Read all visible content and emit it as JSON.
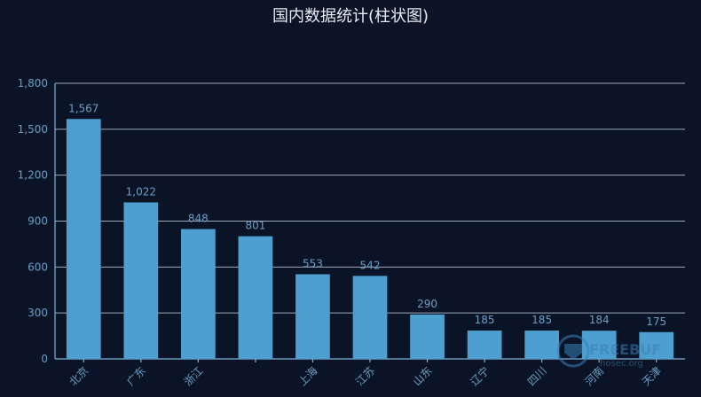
{
  "chart_data": {
    "type": "bar",
    "title": "国内数据统计(柱状图)",
    "categories": [
      "北京",
      "广东",
      "浙江",
      "",
      "上海",
      "江苏",
      "山东",
      "辽宁",
      "四川",
      "河南",
      "天津"
    ],
    "values": [
      1567,
      1022,
      848,
      801,
      553,
      542,
      290,
      185,
      185,
      184,
      175
    ],
    "value_labels": [
      "1,567",
      "1,022",
      "848",
      "801",
      "553",
      "542",
      "290",
      "185",
      "185",
      "184",
      "175"
    ],
    "ylim": [
      0,
      1800
    ],
    "yticks": [
      0,
      300,
      600,
      900,
      1200,
      1500,
      1800
    ],
    "ytick_labels": [
      "0",
      "300",
      "600",
      "900",
      "1,200",
      "1,500",
      "1,800"
    ],
    "grid": true,
    "colors": {
      "bar": "#4d9fcf",
      "background": "#0a1426",
      "title": "#e6ebf2",
      "labels": "#6a9ec4"
    }
  },
  "watermark": {
    "line1": "FREEBUF",
    "line2": "hosec.org"
  }
}
